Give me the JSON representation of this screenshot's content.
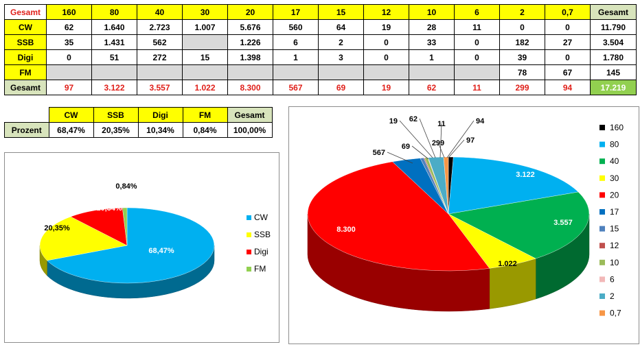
{
  "main_table": {
    "corner": "Gesamt",
    "headers": [
      "160",
      "80",
      "40",
      "30",
      "20",
      "17",
      "15",
      "12",
      "10",
      "6",
      "2",
      "0,7"
    ],
    "total_header": "Gesamt",
    "rows": [
      {
        "label": "CW",
        "cells": [
          "62",
          "1.640",
          "2.723",
          "1.007",
          "5.676",
          "560",
          "64",
          "19",
          "28",
          "11",
          "0",
          "0"
        ],
        "total": "11.790"
      },
      {
        "label": "SSB",
        "cells": [
          "35",
          "1.431",
          "562",
          "",
          "1.226",
          "6",
          "2",
          "0",
          "33",
          "0",
          "182",
          "27"
        ],
        "total": "3.504"
      },
      {
        "label": "Digi",
        "cells": [
          "0",
          "51",
          "272",
          "15",
          "1.398",
          "1",
          "3",
          "0",
          "1",
          "0",
          "39",
          "0"
        ],
        "total": "1.780"
      },
      {
        "label": "FM",
        "cells": [
          "",
          "",
          "",
          "",
          "",
          "",
          "",
          "",
          "",
          "",
          "78",
          "67"
        ],
        "total": "145"
      }
    ],
    "total_row": {
      "label": "Gesamt",
      "cells": [
        "97",
        "3.122",
        "3.557",
        "1.022",
        "8.300",
        "567",
        "69",
        "19",
        "62",
        "11",
        "299",
        "94"
      ],
      "total": "17.219"
    }
  },
  "percent_table": {
    "headers": [
      "CW",
      "SSB",
      "Digi",
      "FM",
      "Gesamt"
    ],
    "row_label": "Prozent",
    "values": [
      "68,47%",
      "20,35%",
      "10,34%",
      "0,84%",
      "100,00%"
    ]
  },
  "chart_data": [
    {
      "type": "pie",
      "title": "",
      "categories": [
        "CW",
        "SSB",
        "Digi",
        "FM"
      ],
      "values": [
        68.47,
        20.35,
        10.34,
        0.84
      ],
      "data_labels": [
        "68,47%",
        "20,35%",
        "10,34%",
        "0,84%"
      ],
      "colors": [
        "#00b0f0",
        "#ffff00",
        "#ff0000",
        "#92d050"
      ],
      "legend_position": "right",
      "style": "3d"
    },
    {
      "type": "pie",
      "title": "",
      "categories": [
        "160",
        "80",
        "40",
        "30",
        "20",
        "17",
        "15",
        "12",
        "10",
        "6",
        "2",
        "0,7"
      ],
      "values": [
        97,
        3122,
        3557,
        1022,
        8300,
        567,
        69,
        19,
        62,
        11,
        299,
        94
      ],
      "data_labels": [
        "97",
        "3.122",
        "3.557",
        "1.022",
        "8.300",
        "567",
        "69",
        "19",
        "62",
        "11",
        "299",
        "94"
      ],
      "colors": [
        "#000000",
        "#00b0f0",
        "#00b050",
        "#ffff00",
        "#ff0000",
        "#0070c0",
        "#4f81bd",
        "#c0504d",
        "#9bbb59",
        "#f2b8b8",
        "#4bacc6",
        "#f79646"
      ],
      "legend_position": "right",
      "style": "3d"
    }
  ]
}
